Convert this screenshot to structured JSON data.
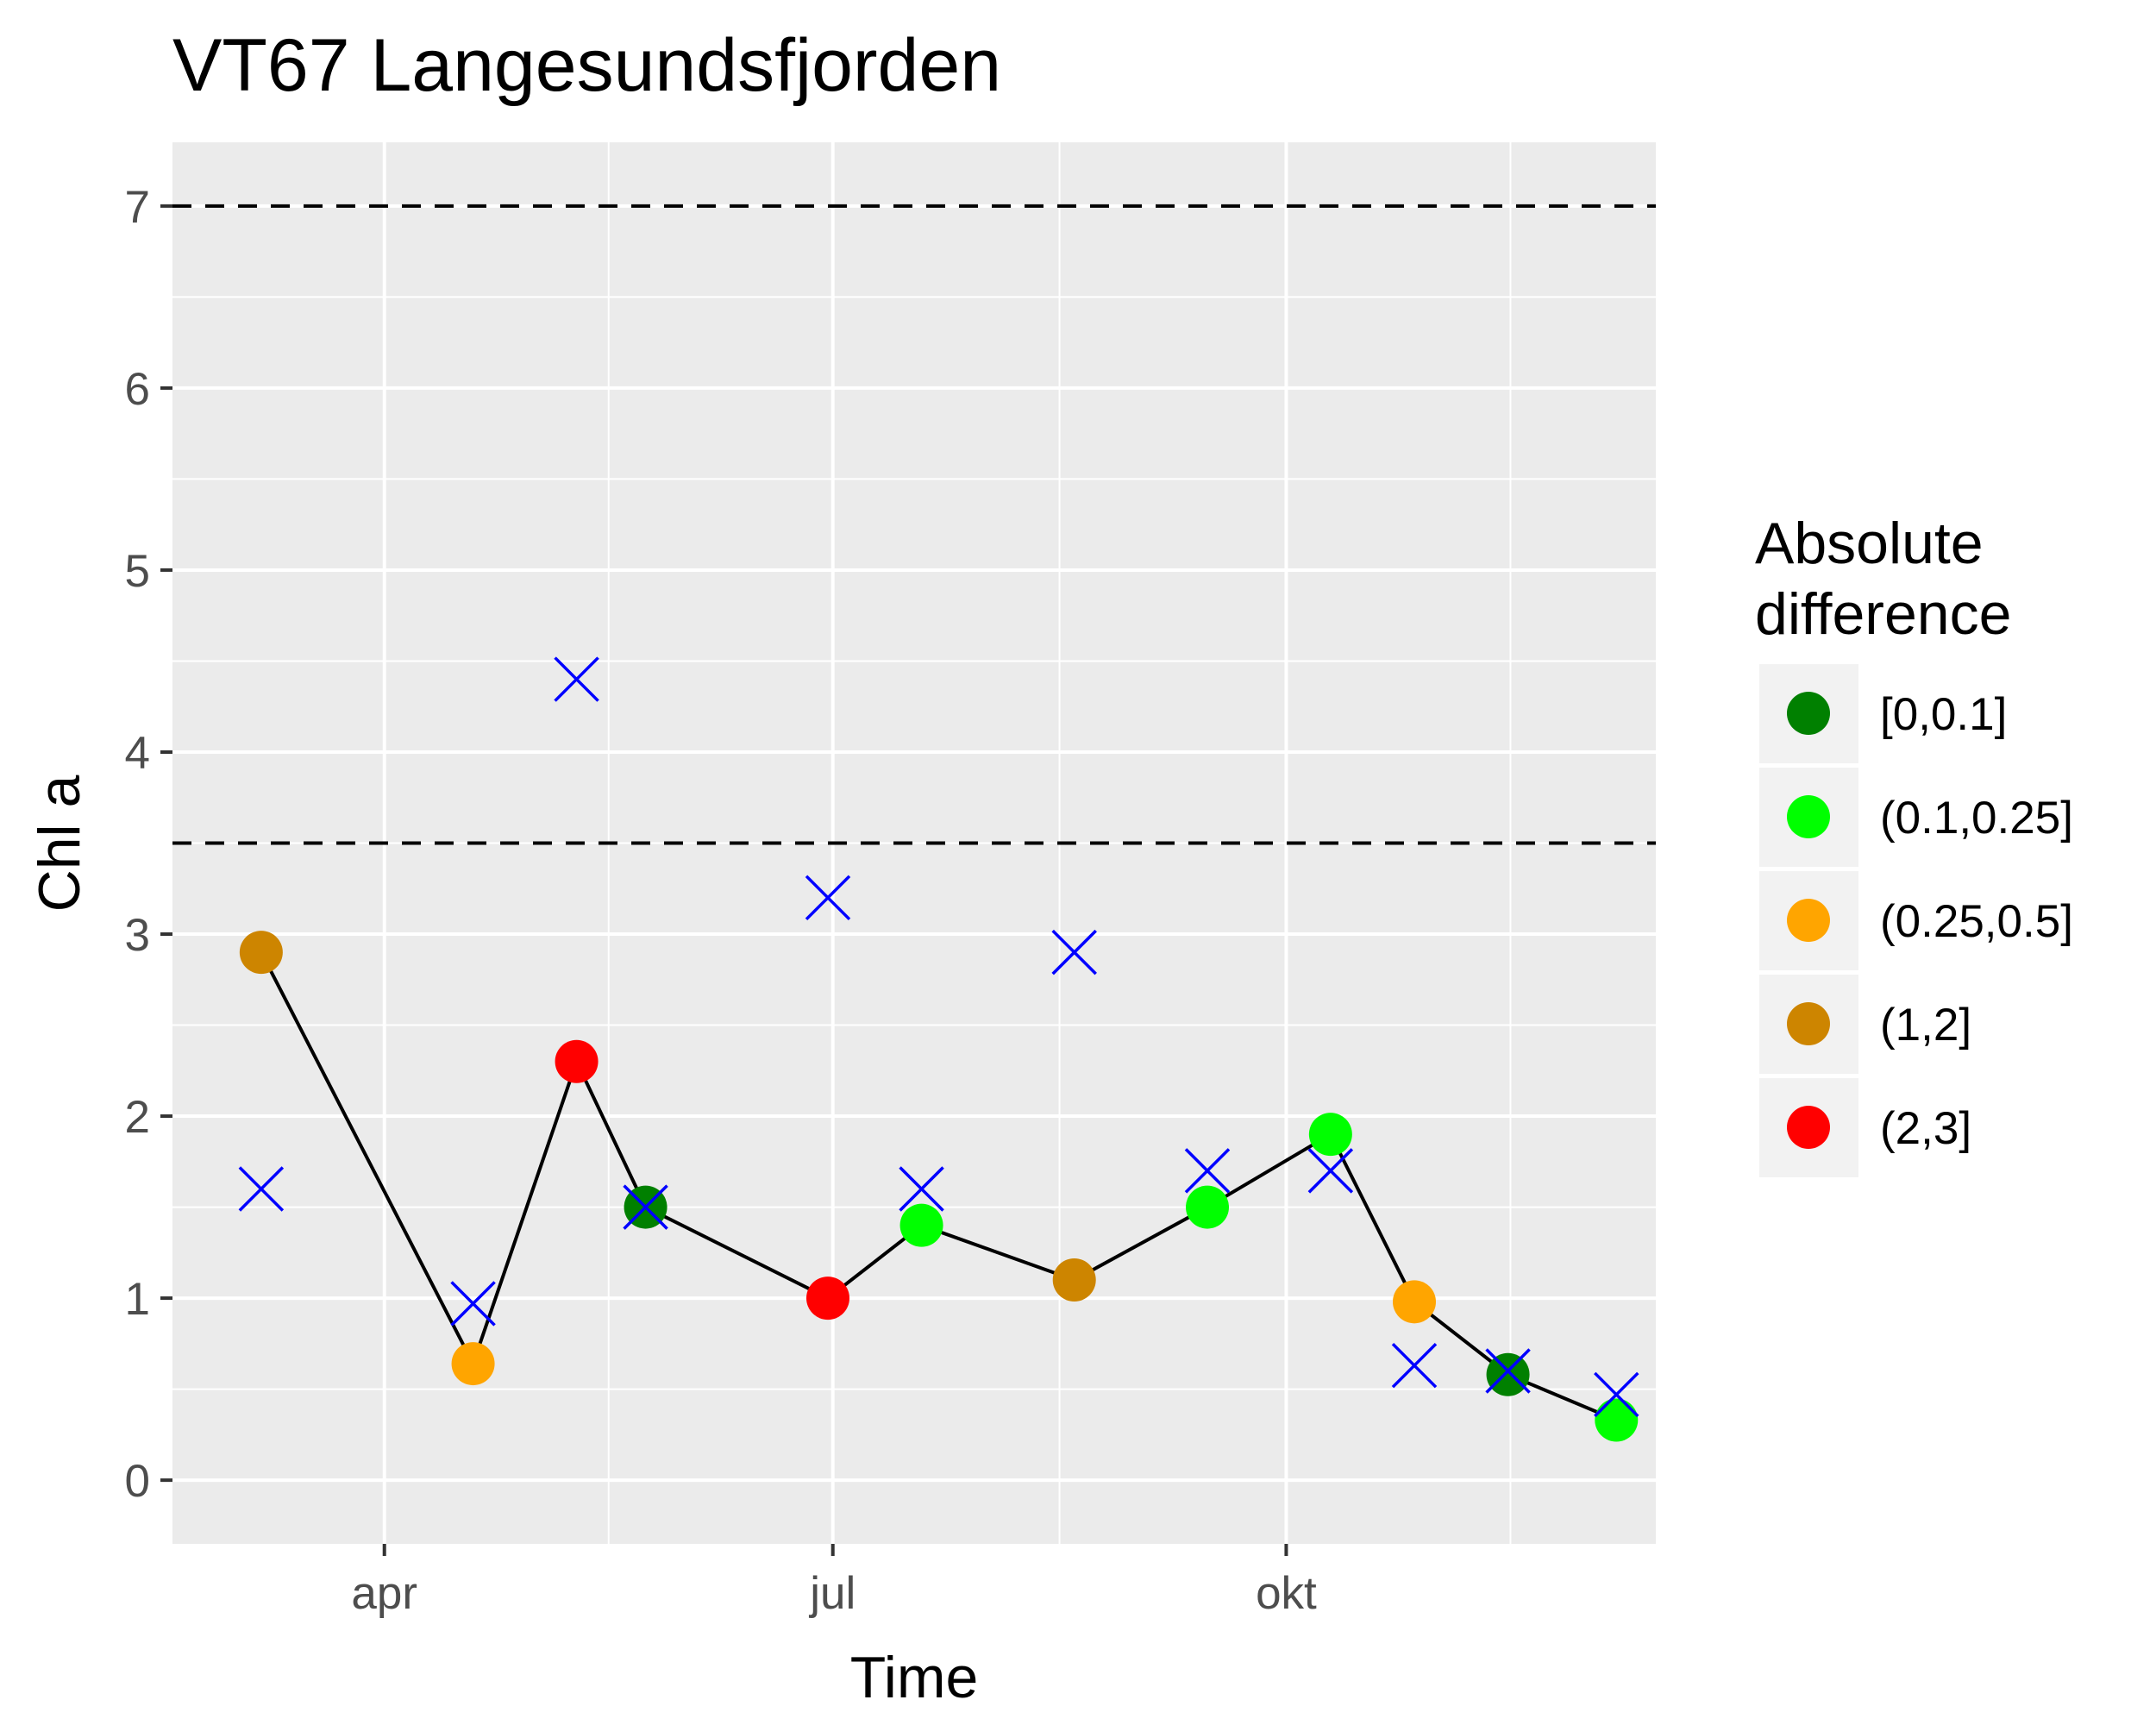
{
  "chart_data": {
    "type": "scatter",
    "title": "VT67 Langesundsfjorden",
    "xlabel": "Time",
    "ylabel": "Chl a",
    "x_ticks": [
      {
        "date": "2017-04-01",
        "label": "apr"
      },
      {
        "date": "2017-07-01",
        "label": "jul"
      },
      {
        "date": "2017-10-01",
        "label": "okt"
      }
    ],
    "xlim": [
      "2017-02-17",
      "2017-12-15"
    ],
    "ylim": [
      -0.35,
      7.35
    ],
    "y_ticks": [
      0,
      1,
      2,
      3,
      4,
      5,
      6,
      7
    ],
    "grid": true,
    "reference_lines": [
      3.5,
      7
    ],
    "line_series": {
      "points": [
        {
          "date": "2017-03-07",
          "value": 2.9,
          "class": "(1,2]"
        },
        {
          "date": "2017-04-19",
          "value": 0.64,
          "class": "(0.25,0.5]"
        },
        {
          "date": "2017-05-10",
          "value": 2.3,
          "class": "(2,3]"
        },
        {
          "date": "2017-05-24",
          "value": 1.5,
          "class": "[0,0.1]"
        },
        {
          "date": "2017-06-30",
          "value": 1.0,
          "class": "(2,3]"
        },
        {
          "date": "2017-07-19",
          "value": 1.4,
          "class": "(0.1,0.25]"
        },
        {
          "date": "2017-08-19",
          "value": 1.1,
          "class": "(1,2]"
        },
        {
          "date": "2017-09-15",
          "value": 1.5,
          "class": "(0.1,0.25]"
        },
        {
          "date": "2017-10-10",
          "value": 1.9,
          "class": "(0.1,0.25]"
        },
        {
          "date": "2017-10-27",
          "value": 0.98,
          "class": "(0.25,0.5]"
        },
        {
          "date": "2017-11-15",
          "value": 0.58,
          "class": "[0,0.1]"
        },
        {
          "date": "2017-12-07",
          "value": 0.33,
          "class": "(0.1,0.25]"
        }
      ]
    },
    "cross_series": {
      "color": "#0000ff",
      "points": [
        {
          "date": "2017-03-07",
          "value": 1.6
        },
        {
          "date": "2017-04-19",
          "value": 0.97
        },
        {
          "date": "2017-05-10",
          "value": 4.4
        },
        {
          "date": "2017-05-24",
          "value": 1.5
        },
        {
          "date": "2017-06-30",
          "value": 3.2
        },
        {
          "date": "2017-07-19",
          "value": 1.6
        },
        {
          "date": "2017-08-19",
          "value": 2.9
        },
        {
          "date": "2017-09-15",
          "value": 1.7
        },
        {
          "date": "2017-10-10",
          "value": 1.7
        },
        {
          "date": "2017-10-27",
          "value": 0.63
        },
        {
          "date": "2017-11-15",
          "value": 0.6
        },
        {
          "date": "2017-12-07",
          "value": 0.47
        }
      ]
    },
    "legend": {
      "title_line1": "Absolute",
      "title_line2": "difference",
      "placement": "right",
      "items": [
        {
          "label": "[0,0.1]",
          "color": "#008000"
        },
        {
          "label": "(0.1,0.25]",
          "color": "#00ff00"
        },
        {
          "label": "(0.25,0.5]",
          "color": "#ffa500"
        },
        {
          "label": "(1,2]",
          "color": "#cd8500"
        },
        {
          "label": "(2,3]",
          "color": "#ff0000"
        }
      ]
    }
  }
}
